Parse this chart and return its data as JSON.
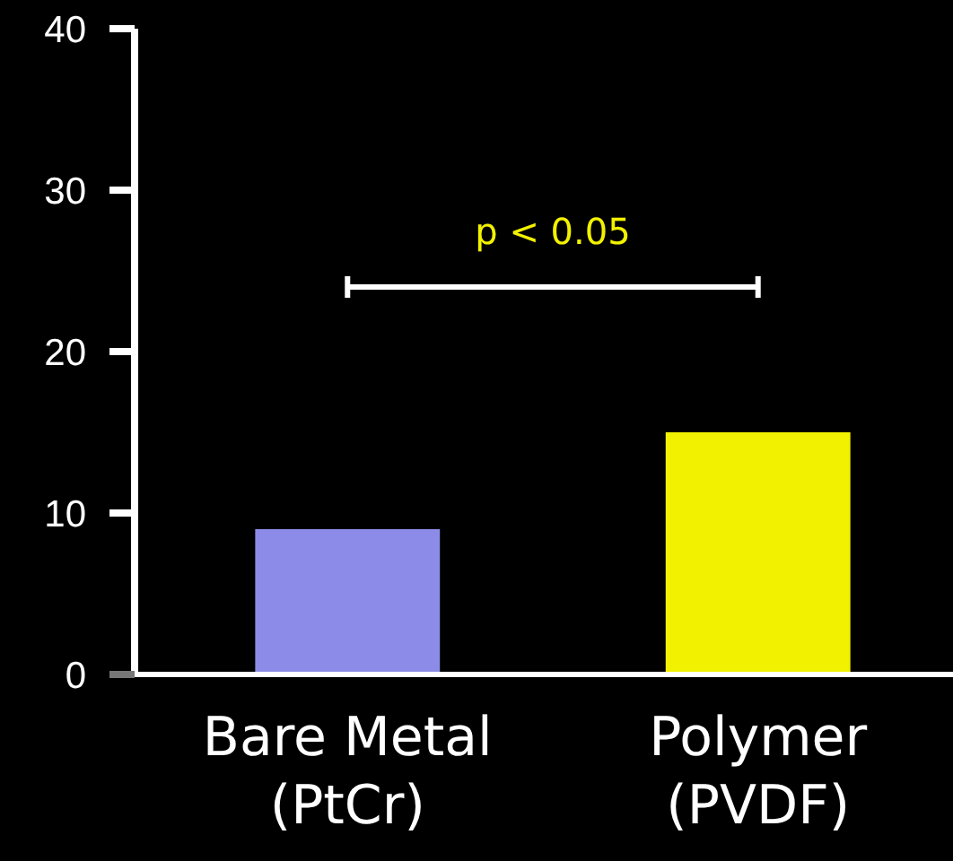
{
  "chart_data": {
    "type": "bar",
    "categories": [
      "Bare Metal\n(PtCr)",
      "Polymer\n(PVDF)"
    ],
    "values": [
      9,
      15
    ],
    "colors": [
      "#8c8ce8",
      "#f2f200"
    ],
    "ylim": [
      0,
      40
    ],
    "yticks": [
      0,
      10,
      20,
      30,
      40
    ],
    "grid": false,
    "annotations": [
      "p < 0.05"
    ]
  }
}
